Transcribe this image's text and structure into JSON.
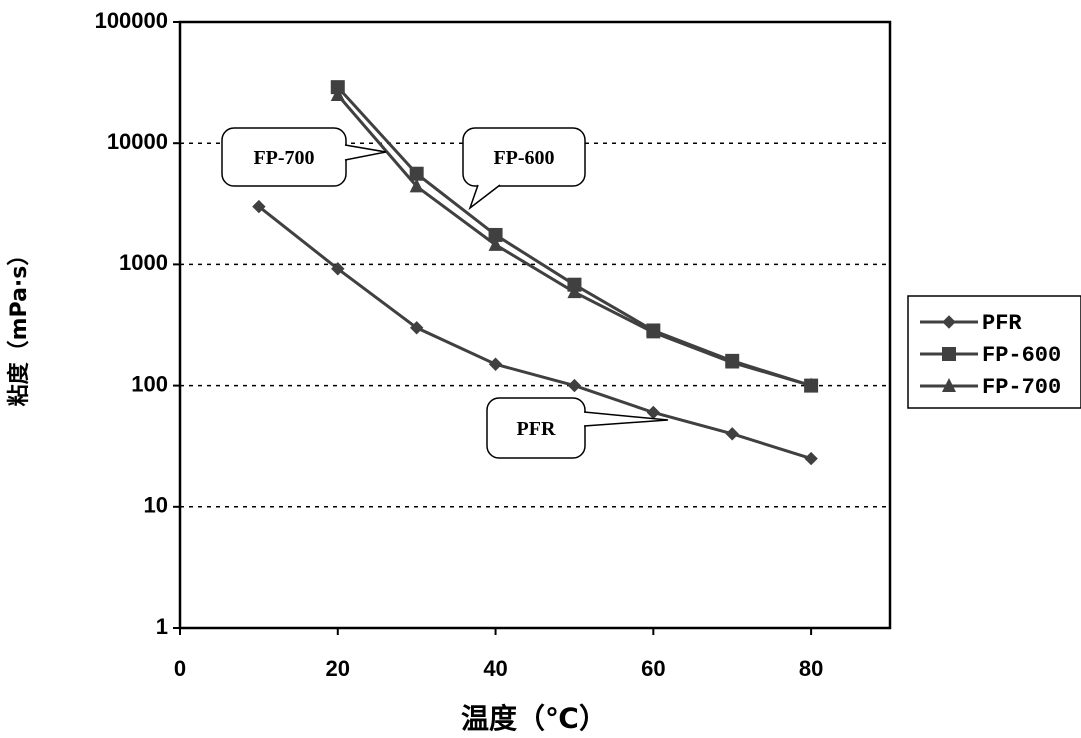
{
  "chart_data": {
    "type": "line",
    "xlabel": "温度（℃）",
    "ylabel": "粘度（mPa·s）",
    "xlim": [
      0,
      90
    ],
    "ylim": [
      1,
      100000
    ],
    "yscale": "log",
    "xticks": [
      "0",
      "20",
      "40",
      "60",
      "80"
    ],
    "yticks": [
      "1",
      "10",
      "100",
      "1000",
      "10000",
      "100000"
    ],
    "grid": "horizontal-dashed",
    "legend_position": "right",
    "series": [
      {
        "name": "PFR",
        "marker": "diamond",
        "x": [
          10,
          20,
          30,
          40,
          50,
          60,
          70,
          80
        ],
        "y": [
          3000,
          920,
          300,
          150,
          100,
          60,
          40,
          25
        ]
      },
      {
        "name": "FP-600",
        "marker": "square",
        "x": [
          20,
          30,
          40,
          50,
          60,
          70,
          80
        ],
        "y": [
          29000,
          5600,
          1750,
          680,
          285,
          160,
          100
        ]
      },
      {
        "name": "FP-700",
        "marker": "triangle",
        "x": [
          20,
          30,
          40,
          50,
          60,
          70,
          80
        ],
        "y": [
          25000,
          4400,
          1450,
          590,
          275,
          155,
          100
        ]
      }
    ],
    "callouts": [
      {
        "text": "FP-700",
        "series": "FP-700"
      },
      {
        "text": "FP-600",
        "series": "FP-600"
      },
      {
        "text": "PFR",
        "series": "PFR"
      }
    ]
  }
}
